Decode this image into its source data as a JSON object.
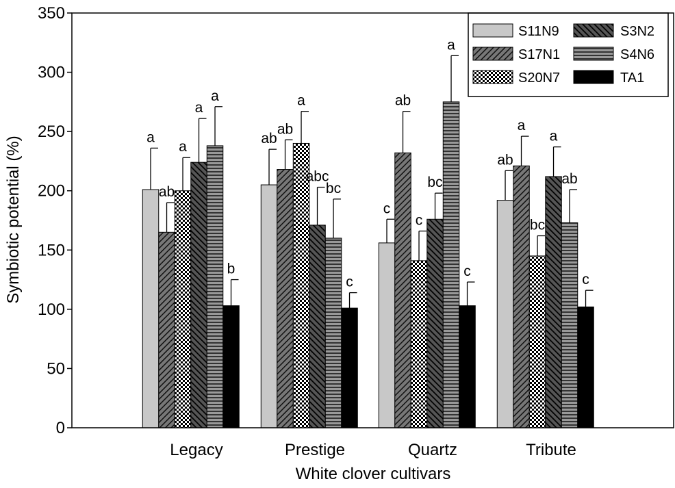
{
  "chart_data": {
    "type": "bar",
    "title": "",
    "xlabel": "White clover cultivars",
    "ylabel": "Symbiotic potential (%)",
    "ylim": [
      0,
      350
    ],
    "yticks": [
      0,
      50,
      100,
      150,
      200,
      250,
      300,
      350
    ],
    "categories": [
      "Legacy",
      "Prestige",
      "Quartz",
      "Tribute"
    ],
    "legend_position": "top-right",
    "series": [
      {
        "name": "S11N9",
        "pattern": "solid-light-gray",
        "color": "#c8c8c8",
        "values": [
          201,
          205,
          156,
          192
        ],
        "errors": [
          35,
          30,
          20,
          25
        ],
        "letters": [
          "a",
          "ab",
          "c",
          "ab"
        ]
      },
      {
        "name": "S17N1",
        "pattern": "diagonal-hatch",
        "color": "#555555",
        "values": [
          165,
          218,
          232,
          221
        ],
        "errors": [
          25,
          25,
          35,
          25
        ],
        "letters": [
          "ab",
          "ab",
          "ab",
          "a"
        ]
      },
      {
        "name": "S20N7",
        "pattern": "checkered",
        "color": "#666666",
        "values": [
          200,
          240,
          141,
          145
        ],
        "errors": [
          28,
          27,
          25,
          17
        ],
        "letters": [
          "a",
          "a",
          "c",
          "bc"
        ]
      },
      {
        "name": "S3N2",
        "pattern": "reverse-diagonal-hatch",
        "color": "#333333",
        "values": [
          224,
          171,
          176,
          212
        ],
        "errors": [
          37,
          32,
          22,
          25
        ],
        "letters": [
          "a",
          "abc",
          "bc",
          "a"
        ]
      },
      {
        "name": "S4N6",
        "pattern": "horizontal-lines",
        "color": "#777777",
        "values": [
          238,
          160,
          275,
          173
        ],
        "errors": [
          33,
          33,
          39,
          28
        ],
        "letters": [
          "a",
          "bc",
          "a",
          "ab"
        ]
      },
      {
        "name": "TA1",
        "pattern": "solid-black",
        "color": "#000000",
        "values": [
          103,
          101,
          103,
          102
        ],
        "errors": [
          22,
          13,
          20,
          14
        ],
        "letters": [
          "b",
          "c",
          "c",
          "c"
        ]
      }
    ]
  }
}
